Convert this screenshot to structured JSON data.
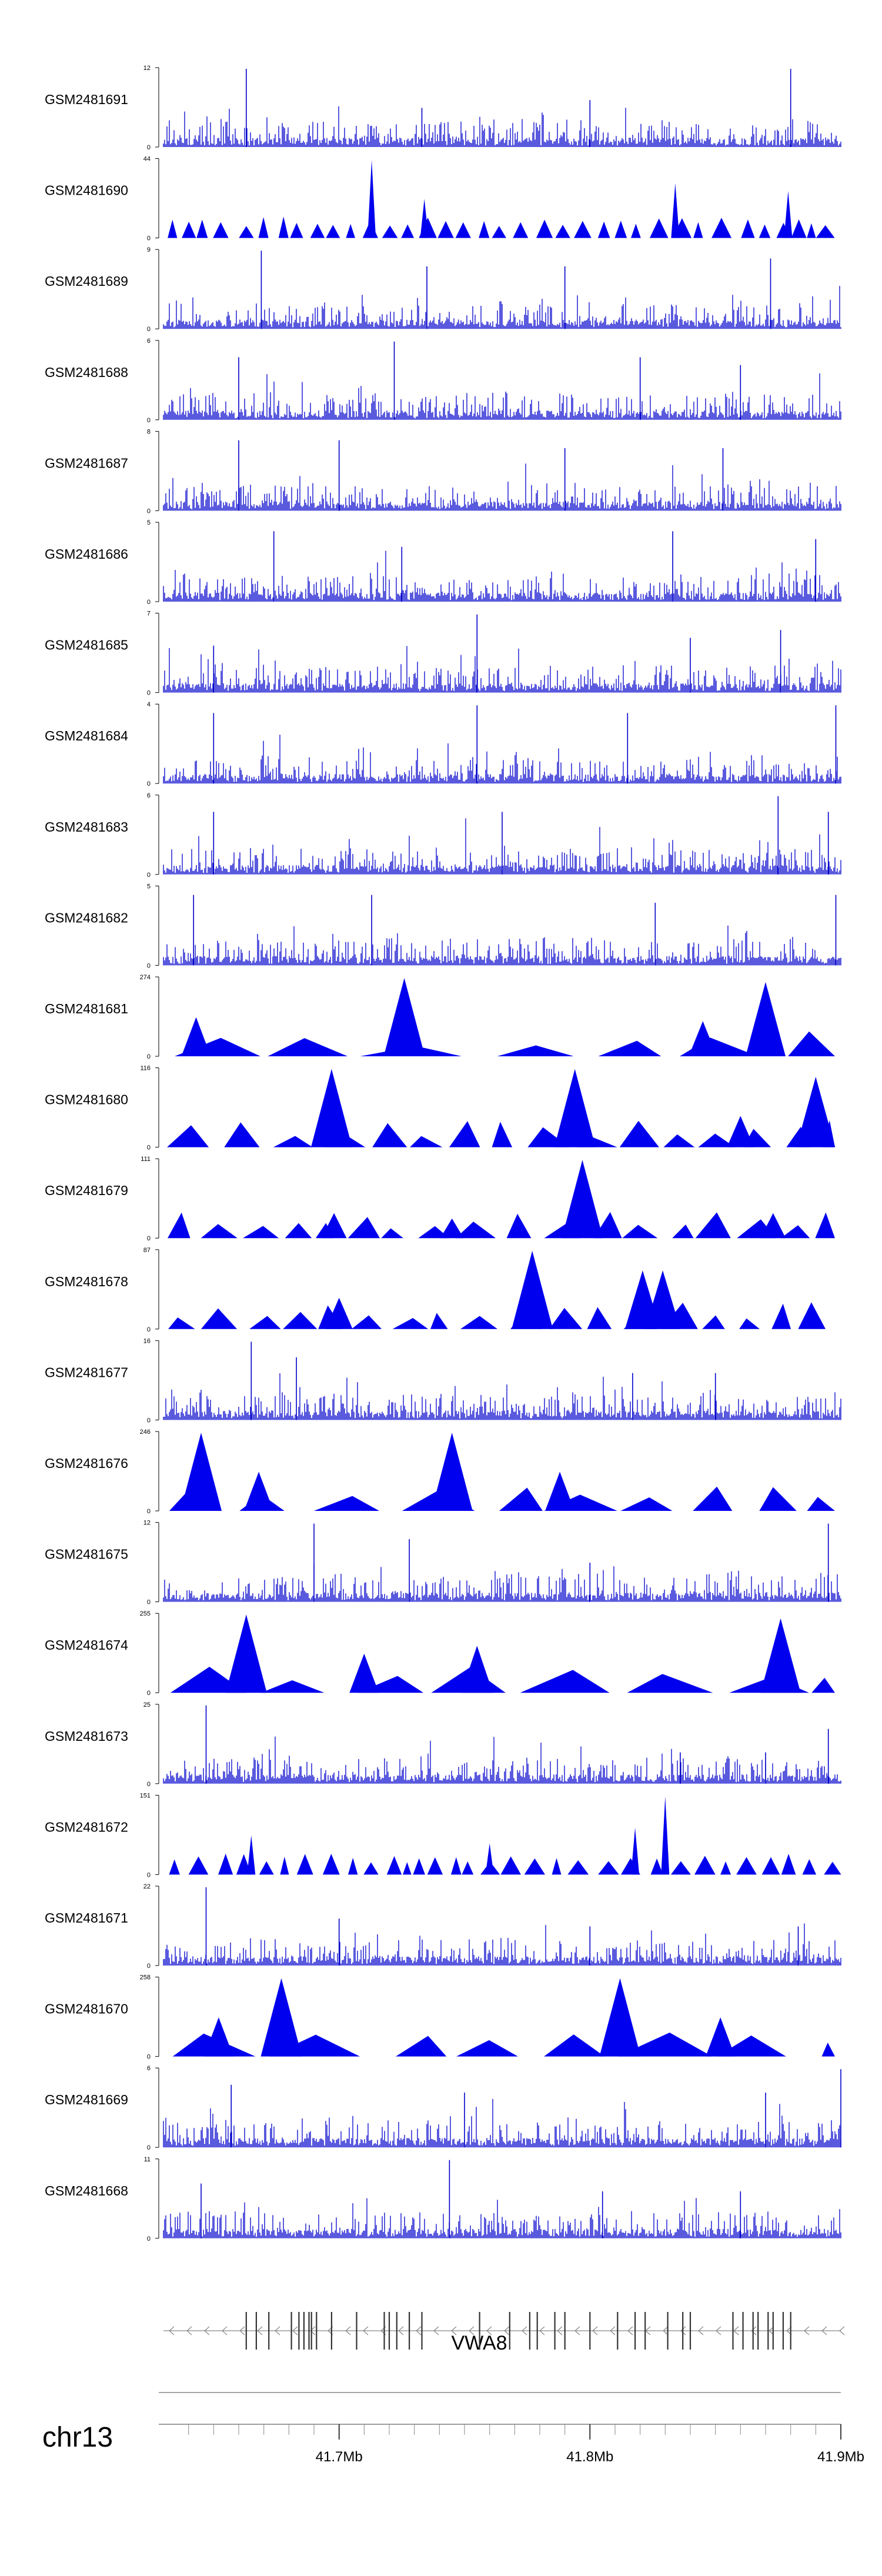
{
  "chart_data": {
    "type": "area",
    "title": "",
    "chromosome": "chr13",
    "gene": {
      "name": "VWA8",
      "strand": "-"
    },
    "xlim": [
      41.63,
      41.9
    ],
    "x_ticks": [
      {
        "value": 41.7,
        "label": "41.7Mb"
      },
      {
        "value": 41.8,
        "label": "41.8Mb"
      },
      {
        "value": 41.9,
        "label": "41.9Mb"
      }
    ],
    "exons": [
      41.663,
      41.667,
      41.672,
      41.681,
      41.684,
      41.686,
      41.688,
      41.689,
      41.691,
      41.697,
      41.707,
      41.718,
      41.72,
      41.723,
      41.728,
      41.733,
      41.756,
      41.768,
      41.776,
      41.779,
      41.786,
      41.79,
      41.8,
      41.811,
      41.818,
      41.822,
      41.831,
      41.837,
      41.84,
      41.857,
      41.861,
      41.865,
      41.867,
      41.871,
      41.873,
      41.877,
      41.88
    ],
    "tracks": [
      {
        "name": "GSM2481691",
        "ymax": 12,
        "style": "spiky",
        "peaks": [
          [
            41.663,
            1.0
          ],
          [
            41.733,
            0.5
          ],
          [
            41.8,
            0.6
          ],
          [
            41.88,
            1.0
          ]
        ]
      },
      {
        "name": "GSM2481690",
        "ymax": 44,
        "style": "blocky",
        "peaks": [
          [
            41.713,
            1.0
          ],
          [
            41.734,
            0.5
          ],
          [
            41.834,
            0.7
          ],
          [
            41.879,
            0.6
          ]
        ]
      },
      {
        "name": "GSM2481689",
        "ymax": 9,
        "style": "spiky",
        "peaks": [
          [
            41.669,
            1.0
          ],
          [
            41.735,
            0.8
          ],
          [
            41.79,
            0.8
          ],
          [
            41.872,
            0.9
          ]
        ]
      },
      {
        "name": "GSM2481688",
        "ymax": 6,
        "style": "spiky",
        "peaks": [
          [
            41.66,
            0.8
          ],
          [
            41.722,
            1.0
          ],
          [
            41.82,
            0.8
          ],
          [
            41.86,
            0.7
          ]
        ]
      },
      {
        "name": "GSM2481687",
        "ymax": 8,
        "style": "spiky",
        "peaks": [
          [
            41.66,
            0.9
          ],
          [
            41.7,
            0.9
          ],
          [
            41.79,
            0.8
          ],
          [
            41.853,
            0.8
          ]
        ]
      },
      {
        "name": "GSM2481686",
        "ymax": 5,
        "style": "spiky",
        "peaks": [
          [
            41.674,
            0.9
          ],
          [
            41.725,
            0.7
          ],
          [
            41.833,
            0.9
          ],
          [
            41.89,
            0.8
          ]
        ]
      },
      {
        "name": "GSM2481685",
        "ymax": 7,
        "style": "spiky",
        "peaks": [
          [
            41.65,
            0.6
          ],
          [
            41.755,
            1.0
          ],
          [
            41.84,
            0.7
          ],
          [
            41.876,
            0.8
          ]
        ]
      },
      {
        "name": "GSM2481684",
        "ymax": 4,
        "style": "spiky",
        "peaks": [
          [
            41.65,
            0.9
          ],
          [
            41.755,
            1.0
          ],
          [
            41.815,
            0.9
          ],
          [
            41.898,
            1.0
          ]
        ]
      },
      {
        "name": "GSM2481683",
        "ymax": 6,
        "style": "spiky",
        "peaks": [
          [
            41.65,
            0.8
          ],
          [
            41.765,
            0.8
          ],
          [
            41.875,
            1.0
          ],
          [
            41.895,
            0.8
          ]
        ]
      },
      {
        "name": "GSM2481682",
        "ymax": 5,
        "style": "spiky",
        "peaks": [
          [
            41.642,
            0.9
          ],
          [
            41.713,
            0.9
          ],
          [
            41.826,
            0.8
          ],
          [
            41.898,
            0.9
          ]
        ]
      },
      {
        "name": "GSM2481681",
        "ymax": 274,
        "style": "triangles",
        "peaks": [
          [
            41.726,
            1.0
          ],
          [
            41.87,
            0.95
          ],
          [
            41.845,
            0.45
          ],
          [
            41.643,
            0.5
          ]
        ]
      },
      {
        "name": "GSM2481680",
        "ymax": 116,
        "style": "triangles",
        "peaks": [
          [
            41.697,
            1.0
          ],
          [
            41.794,
            1.0
          ],
          [
            41.89,
            0.9
          ],
          [
            41.86,
            0.4
          ]
        ]
      },
      {
        "name": "GSM2481679",
        "ymax": 111,
        "style": "triangles",
        "peaks": [
          [
            41.797,
            1.0
          ],
          [
            41.698,
            0.32
          ],
          [
            41.873,
            0.32
          ],
          [
            41.745,
            0.25
          ]
        ]
      },
      {
        "name": "GSM2481678",
        "ymax": 87,
        "style": "triangles",
        "peaks": [
          [
            41.777,
            1.0
          ],
          [
            41.821,
            0.75
          ],
          [
            41.829,
            0.75
          ],
          [
            41.7,
            0.4
          ]
        ]
      },
      {
        "name": "GSM2481677",
        "ymax": 16,
        "style": "spiky",
        "peaks": [
          [
            41.665,
            1.0
          ],
          [
            41.683,
            0.8
          ],
          [
            41.817,
            0.6
          ],
          [
            41.85,
            0.6
          ]
        ]
      },
      {
        "name": "GSM2481676",
        "ymax": 246,
        "style": "triangles",
        "peaks": [
          [
            41.645,
            1.0
          ],
          [
            41.745,
            1.0
          ],
          [
            41.788,
            0.5
          ],
          [
            41.668,
            0.5
          ]
        ]
      },
      {
        "name": "GSM2481675",
        "ymax": 12,
        "style": "spiky",
        "peaks": [
          [
            41.69,
            1.0
          ],
          [
            41.728,
            0.8
          ],
          [
            41.8,
            0.5
          ],
          [
            41.895,
            1.0
          ]
        ]
      },
      {
        "name": "GSM2481674",
        "ymax": 255,
        "style": "triangles",
        "peaks": [
          [
            41.663,
            1.0
          ],
          [
            41.876,
            0.95
          ],
          [
            41.755,
            0.6
          ],
          [
            41.71,
            0.5
          ]
        ]
      },
      {
        "name": "GSM2481673",
        "ymax": 25,
        "style": "spiky",
        "peaks": [
          [
            41.647,
            1.0
          ],
          [
            41.836,
            0.4
          ],
          [
            41.895,
            0.7
          ],
          [
            41.87,
            0.4
          ]
        ]
      },
      {
        "name": "GSM2481672",
        "ymax": 151,
        "style": "blocky",
        "peaks": [
          [
            41.83,
            1.0
          ],
          [
            41.818,
            0.6
          ],
          [
            41.665,
            0.5
          ],
          [
            41.76,
            0.4
          ]
        ]
      },
      {
        "name": "GSM2481671",
        "ymax": 22,
        "style": "spiky",
        "peaks": [
          [
            41.647,
            1.0
          ],
          [
            41.7,
            0.6
          ],
          [
            41.8,
            0.5
          ],
          [
            41.883,
            0.5
          ]
        ]
      },
      {
        "name": "GSM2481670",
        "ymax": 258,
        "style": "triangles",
        "peaks": [
          [
            41.677,
            1.0
          ],
          [
            41.812,
            1.0
          ],
          [
            41.652,
            0.5
          ],
          [
            41.852,
            0.5
          ]
        ]
      },
      {
        "name": "GSM2481669",
        "ymax": 6,
        "style": "spiky",
        "peaks": [
          [
            41.657,
            0.8
          ],
          [
            41.75,
            0.7
          ],
          [
            41.87,
            0.7
          ],
          [
            41.9,
            1.0
          ]
        ]
      },
      {
        "name": "GSM2481668",
        "ymax": 11,
        "style": "spiky",
        "peaks": [
          [
            41.744,
            1.0
          ],
          [
            41.645,
            0.7
          ],
          [
            41.805,
            0.6
          ],
          [
            41.86,
            0.6
          ]
        ]
      }
    ]
  }
}
